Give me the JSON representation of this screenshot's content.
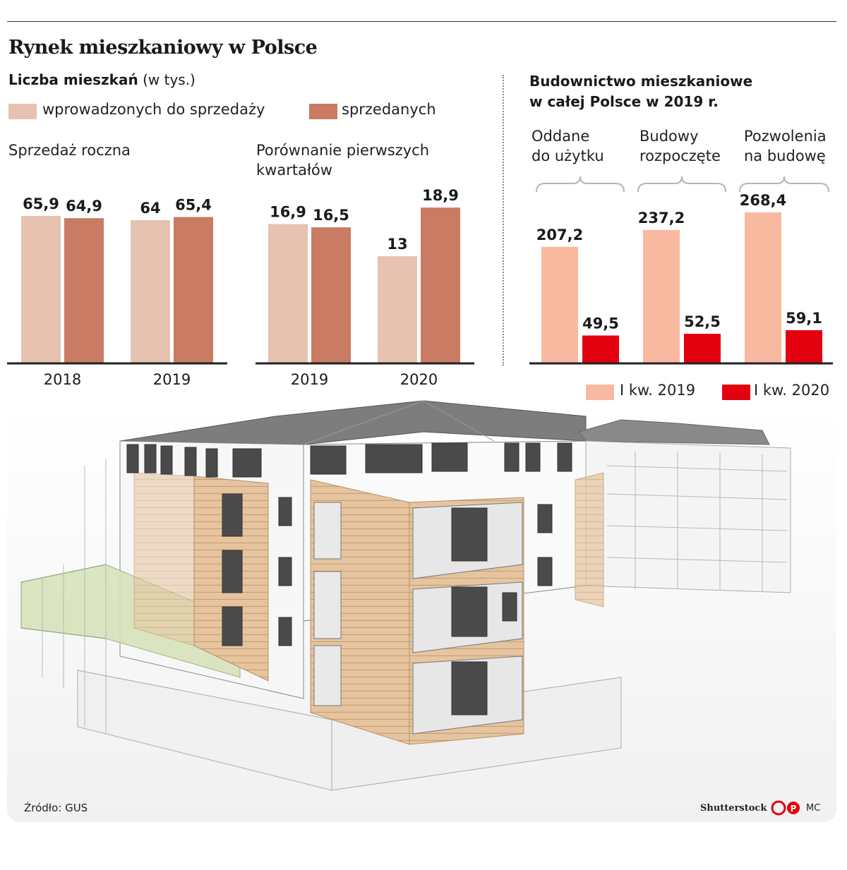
{
  "header": {
    "title": "Rynek mieszkaniowy w Polsce",
    "subtitle_bold": "Liczba mieszkań",
    "subtitle_unit": "(w tys.)"
  },
  "left_legend": {
    "offered_label": "wprowadzonych do sprzedaży",
    "sold_label": "sprzedanych",
    "offered_color": "#e7c2b1",
    "sold_color": "#c97b63"
  },
  "right_header": {
    "title_line1": "Budownictwo mieszkaniowe",
    "title_line2": "w całej Polsce w 2019 r."
  },
  "right_categories": [
    {
      "line1": "Oddane",
      "line2": "do użytku"
    },
    {
      "line1": "Budowy",
      "line2": "rozpoczęte"
    },
    {
      "line1": "Pozwolenia",
      "line2": "na budowę"
    }
  ],
  "right_legend": {
    "q2019_label": "I kw. 2019",
    "q2020_label": "I kw. 2020",
    "q2019_color": "#f9b9a0",
    "q2020_color": "#e3000f"
  },
  "footer": {
    "source": "Źródło: GUS",
    "photo_credit": "Shutterstock",
    "logo_letters": "CP",
    "author": "MC"
  },
  "illustration": {
    "subject": "building-rendering"
  },
  "chart_data": [
    {
      "type": "bar",
      "title": "Sprzedaż roczna",
      "categories": [
        "2018",
        "2019"
      ],
      "series": [
        {
          "name": "wprowadzonych do sprzedaży",
          "values": [
            65.9,
            64
          ],
          "labels": [
            "65,9",
            "64"
          ]
        },
        {
          "name": "sprzedanych",
          "values": [
            64.9,
            65.4
          ],
          "labels": [
            "64,9",
            "65,4"
          ]
        }
      ],
      "ylim": [
        0,
        70
      ]
    },
    {
      "type": "bar",
      "title_line1": "Porównanie pierwszych",
      "title_line2": "kwartałów",
      "categories": [
        "2019",
        "2020"
      ],
      "series": [
        {
          "name": "wprowadzonych do sprzedaży",
          "values": [
            16.9,
            13
          ],
          "labels": [
            "16,9",
            "13"
          ]
        },
        {
          "name": "sprzedanych",
          "values": [
            16.5,
            18.9
          ],
          "labels": [
            "16,5",
            "18,9"
          ]
        }
      ],
      "ylim": [
        0,
        19
      ]
    },
    {
      "type": "bar",
      "title": "Budownictwo mieszkaniowe w całej Polsce w 2019 r.",
      "categories": [
        "Oddane do użytku",
        "Budowy rozpoczęte",
        "Pozwolenia na budowę"
      ],
      "series": [
        {
          "name": "I kw. 2019",
          "values": [
            207.2,
            237.2,
            268.4
          ],
          "labels": [
            "207,2",
            "237,2",
            "268,4"
          ]
        },
        {
          "name": "I kw. 2020",
          "values": [
            49.5,
            52.5,
            59.1
          ],
          "labels": [
            "49,5",
            "52,5",
            "59,1"
          ]
        }
      ],
      "ylim": [
        0,
        268.4
      ]
    }
  ]
}
